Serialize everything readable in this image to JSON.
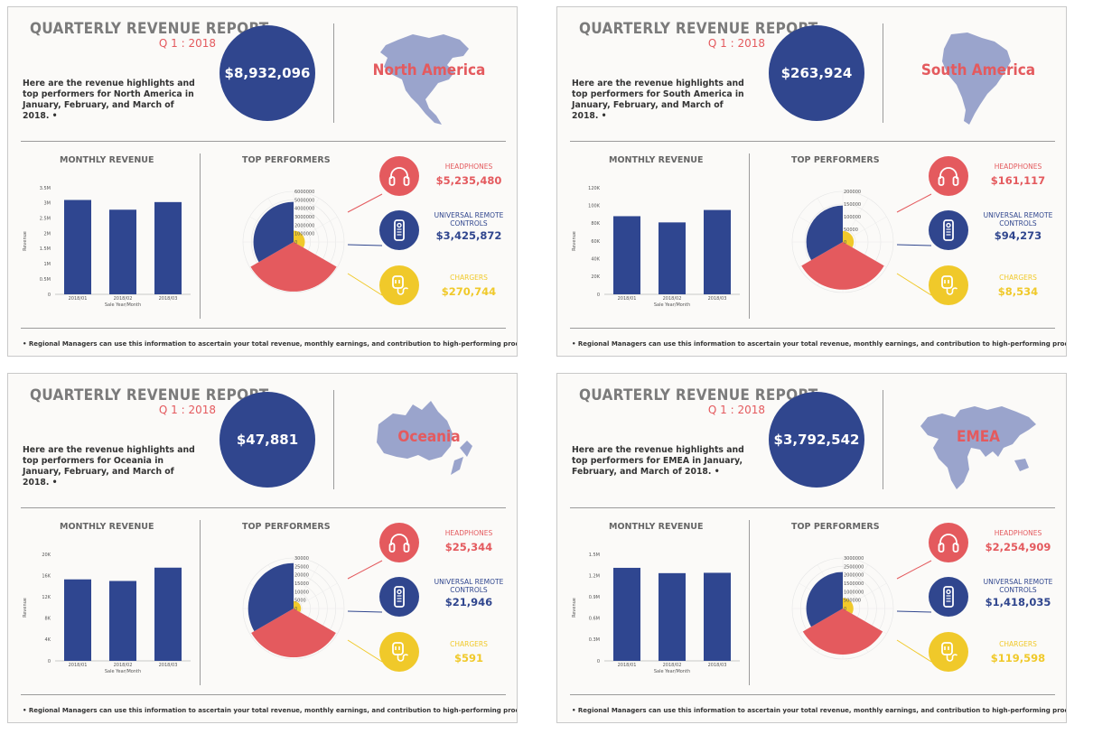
{
  "common": {
    "title": "QUARTERLY REVENUE REPORT",
    "quarter": "Q 1 : 2018",
    "monthly_revenue_title": "MONTHLY REVENUE",
    "top_performers_title": "TOP PERFORMERS",
    "footer": "Regional Managers can use this information to ascertain your total revenue, monthly earnings, and contribution to high-performing products.",
    "products": [
      {
        "name": "HEADPHONES",
        "color": "#e45a5e",
        "icon": "headphones-icon"
      },
      {
        "name": "UNIVERSAL REMOTE CONTROLS",
        "color": "#30468e",
        "icon": "remote-icon"
      },
      {
        "name": "CHARGERS",
        "color": "#f0c92a",
        "icon": "charger-icon"
      }
    ],
    "colors": {
      "bar": "#2f4690",
      "accent": "#e45a5e",
      "navy": "#30468e",
      "yellow": "#f0c92a",
      "map": "#9aa4cc"
    }
  },
  "panels": [
    {
      "region": "North America",
      "total": "$8,932,096",
      "intro": "Here are the revenue highlights and top performers for North America in January, February, and March of 2018.",
      "map_icon": "north-america-map-icon",
      "performers": [
        "$5,235,480",
        "$3,425,872",
        "$270,744"
      ]
    },
    {
      "region": "South America",
      "total": "$263,924",
      "intro": "Here are the revenue highlights and top performers for South America in January, February, and March of 2018.",
      "map_icon": "south-america-map-icon",
      "performers": [
        "$161,117",
        "$94,273",
        "$8,534"
      ]
    },
    {
      "region": "Oceania",
      "total": "$47,881",
      "intro": "Here are the revenue highlights and top performers for Oceania in January, February, and March of 2018.",
      "map_icon": "oceania-map-icon",
      "performers": [
        "$25,344",
        "$21,946",
        "$591"
      ]
    },
    {
      "region": "EMEA",
      "total": "$3,792,542",
      "intro": "Here are the revenue highlights and top performers for EMEA in January, February, and March of 2018.",
      "map_icon": "world-map-icon",
      "performers": [
        "$2,254,909",
        "$1,418,035",
        "$119,598"
      ]
    }
  ],
  "chart_data": [
    {
      "type": "bar",
      "region": "North America",
      "categories": [
        "2018/01",
        "2018/02",
        "2018/03"
      ],
      "values": [
        3100000,
        2780000,
        3030000
      ],
      "xlabel": "Sale Year/Month",
      "ylabel": "Revenue",
      "ylim": [
        0,
        3500000
      ],
      "yticks": [
        0,
        500000,
        1000000,
        1500000,
        2000000,
        2500000,
        3000000,
        3500000
      ],
      "ytick_labels": [
        "0",
        "0.5M",
        "1M",
        "1.5M",
        "2M",
        "2.5M",
        "3M",
        "3.5M"
      ]
    },
    {
      "type": "bar",
      "region": "South America",
      "categories": [
        "2018/01",
        "2018/02",
        "2018/03"
      ],
      "values": [
        88000,
        81000,
        95000
      ],
      "xlabel": "Sale Year/Month",
      "ylabel": "Revenue",
      "ylim": [
        0,
        120000
      ],
      "yticks": [
        0,
        20000,
        40000,
        60000,
        80000,
        100000,
        120000
      ],
      "ytick_labels": [
        "0",
        "20K",
        "40K",
        "60K",
        "80K",
        "100K",
        "120K"
      ]
    },
    {
      "type": "bar",
      "region": "Oceania",
      "categories": [
        "2018/01",
        "2018/02",
        "2018/03"
      ],
      "values": [
        15300,
        15000,
        17500
      ],
      "xlabel": "Sale Year/Month",
      "ylabel": "Revenue",
      "ylim": [
        0,
        20000
      ],
      "yticks": [
        0,
        4000,
        8000,
        12000,
        16000,
        20000
      ],
      "ytick_labels": [
        "0",
        "4K",
        "8K",
        "12K",
        "16K",
        "20K"
      ]
    },
    {
      "type": "bar",
      "region": "EMEA",
      "categories": [
        "2018/01",
        "2018/02",
        "2018/03"
      ],
      "values": [
        1310000,
        1235000,
        1240000
      ],
      "xlabel": "Sale Year/Month",
      "ylabel": "Revenue",
      "ylim": [
        0,
        1500000
      ],
      "yticks": [
        0,
        300000,
        600000,
        900000,
        1200000,
        1500000
      ],
      "ytick_labels": [
        "0",
        "0.3M",
        "0.6M",
        "0.9M",
        "1.2M",
        "1.5M"
      ]
    },
    {
      "type": "polar",
      "region": "North America",
      "values": [
        5235480,
        3425872,
        270744
      ],
      "rmax": 6000000,
      "rticks": [
        "6000000",
        "5000000",
        "4000000",
        "3000000",
        "2000000",
        "1000000",
        "0"
      ]
    },
    {
      "type": "polar",
      "region": "South America",
      "values": [
        161117,
        94273,
        8534
      ],
      "rmax": 200000,
      "rticks": [
        "200000",
        "150000",
        "100000",
        "50000",
        "0"
      ]
    },
    {
      "type": "polar",
      "region": "Oceania",
      "values": [
        25344,
        21946,
        591
      ],
      "rmax": 30000,
      "rticks": [
        "30000",
        "25000",
        "20000",
        "15000",
        "10000",
        "5000",
        "0"
      ]
    },
    {
      "type": "polar",
      "region": "EMEA",
      "values": [
        2254909,
        1418035,
        119598
      ],
      "rmax": 3000000,
      "rticks": [
        "3000000",
        "2500000",
        "2000000",
        "1500000",
        "1000000",
        "500000",
        "0"
      ]
    }
  ]
}
